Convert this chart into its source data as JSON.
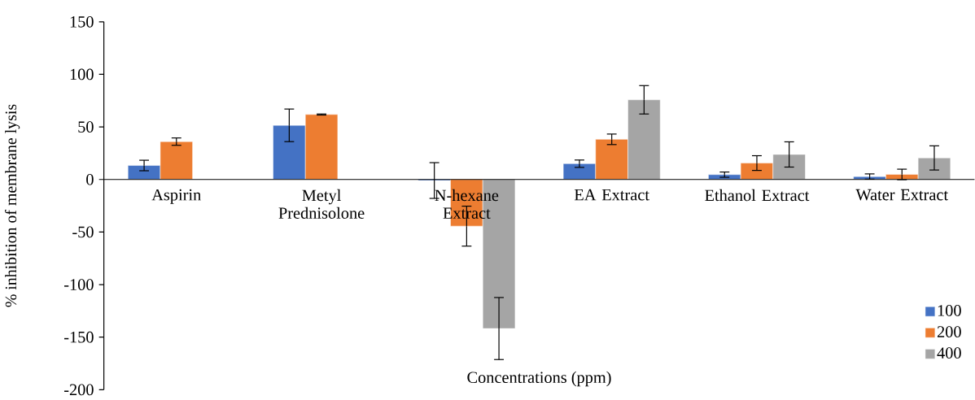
{
  "chart_data": {
    "type": "bar",
    "xlabel": "Concentrations (ppm)",
    "ylabel": "% inhibition of membrane lysis",
    "categories": [
      "Aspirin",
      "Metyl Prednisolone",
      "N-hexane Extract",
      "EA Extract",
      "Ethanol Extract",
      "Water Extract"
    ],
    "series": [
      {
        "name": "100",
        "color": "#4472c4",
        "values": [
          13.3,
          51.5,
          -1,
          15,
          4.6,
          2.8
        ],
        "errors": [
          5,
          15.5,
          17,
          3.5,
          2.5,
          2.5
        ]
      },
      {
        "name": "200",
        "color": "#ed7d31",
        "values": [
          36,
          61.8,
          -44.4,
          38.2,
          15.6,
          4.8
        ],
        "errors": [
          3.5,
          0.5,
          19,
          5,
          7,
          5
        ]
      },
      {
        "name": "400",
        "color": "#a5a5a5",
        "values": [
          null,
          null,
          -141.8,
          75.8,
          23.8,
          20.5
        ],
        "errors": [
          null,
          null,
          29.5,
          13.5,
          12,
          11.5
        ]
      }
    ],
    "ylim": [
      -200,
      150
    ],
    "yticks": [
      -200,
      -150,
      -100,
      -50,
      0,
      50,
      100,
      150
    ],
    "legend": "bottom right"
  }
}
